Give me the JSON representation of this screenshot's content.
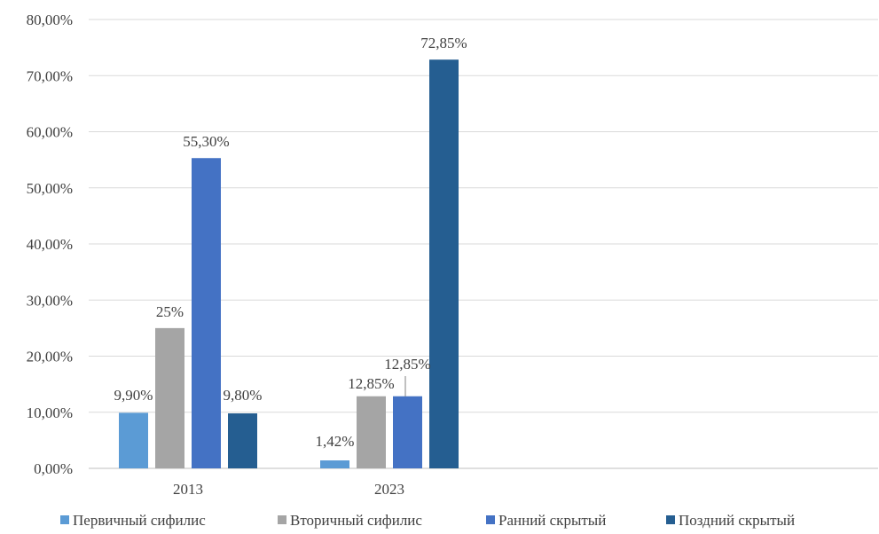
{
  "chart_data": {
    "type": "bar",
    "categories": [
      "2013",
      "2023"
    ],
    "series": [
      {
        "name": "Первичный сифилис",
        "color": "#5b9bd5",
        "values": [
          9.9,
          1.42
        ],
        "labels": [
          "9,90%",
          "1,42%"
        ]
      },
      {
        "name": "Вторичный сифилис",
        "color": "#a5a5a5",
        "values": [
          25,
          12.85
        ],
        "labels": [
          "25%",
          "12,85%"
        ]
      },
      {
        "name": "Ранний скрытый",
        "color": "#4472c4",
        "values": [
          55.3,
          12.85
        ],
        "labels": [
          "55,30%",
          "12,85%"
        ]
      },
      {
        "name": "Поздний скрытый",
        "color": "#255e91",
        "values": [
          9.8,
          72.85
        ],
        "labels": [
          "9,80%",
          "72,85%"
        ]
      }
    ],
    "yticks": [
      {
        "value": 0,
        "label": "0,00%"
      },
      {
        "value": 10,
        "label": "10,00%"
      },
      {
        "value": 20,
        "label": "20,00%"
      },
      {
        "value": 30,
        "label": "30,00%"
      },
      {
        "value": 40,
        "label": "40,00%"
      },
      {
        "value": 50,
        "label": "50,00%"
      },
      {
        "value": 60,
        "label": "60,00%"
      },
      {
        "value": 70,
        "label": "70,00%"
      },
      {
        "value": 80,
        "label": "80,00%"
      }
    ],
    "ylim": [
      0,
      80
    ],
    "grid": true,
    "legend_position": "bottom",
    "title": "",
    "xlabel": "",
    "ylabel": ""
  }
}
